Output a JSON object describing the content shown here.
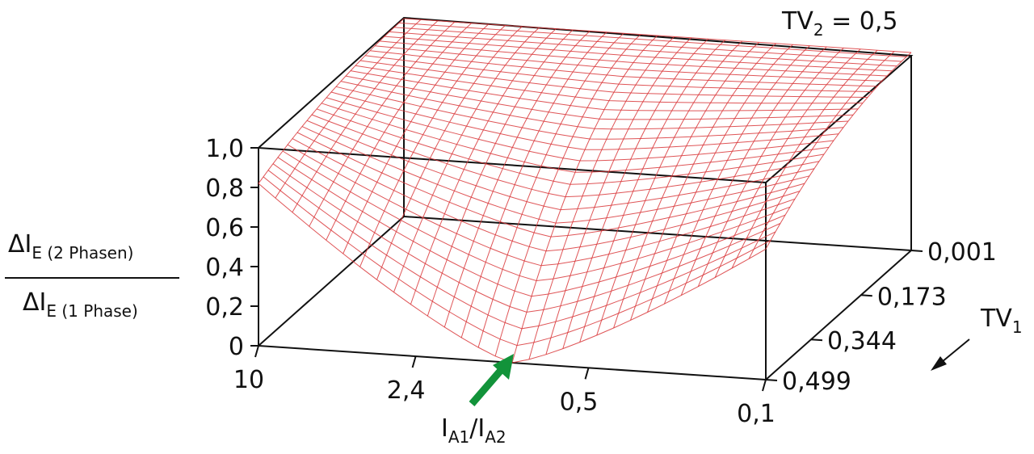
{
  "chart_data": {
    "type": "surface",
    "title": "TV₂ = 0,5",
    "title_main": "TV",
    "title_sub": "2",
    "title_rest": " = 0,5",
    "z_axis": {
      "label_numerator_main": "ΔI",
      "label_numerator_sub": "E (2 Phasen)",
      "label_denominator_main": "ΔI",
      "label_denominator_sub": "E (1 Phase)",
      "ticks": [
        "0",
        "0,2",
        "0,4",
        "0,6",
        "0,8",
        "1,0"
      ],
      "range": [
        0,
        1.0
      ]
    },
    "x_axis": {
      "label_a_main": "I",
      "label_a_sub": "A1",
      "label_slash": "/",
      "label_b_main": "I",
      "label_b_sub": "A2",
      "ticks": [
        "10",
        "2,4",
        "0,5",
        "0,1"
      ],
      "scale": "log",
      "range": [
        10,
        0.1
      ]
    },
    "y_axis": {
      "label_main": "TV",
      "label_sub": "1",
      "ticks": [
        "0,001",
        "0,173",
        "0,344",
        "0,499"
      ],
      "range": [
        0.001,
        0.499
      ]
    },
    "surface_notes": "Ratio near 1,0 at TV1 = 0,001 for all ratios; drops to minimum near 0 at I_A1/I_A2 ≈ 1 and TV1 = 0,499.",
    "corner_values": {
      "x10_tv0499": 0.82,
      "x01_tv0499": 0.66,
      "min_at_x1_tv0499": 0.0
    },
    "colors": {
      "mesh": "#d9373a",
      "arrow": "#12933a",
      "frame": "#111111"
    }
  }
}
